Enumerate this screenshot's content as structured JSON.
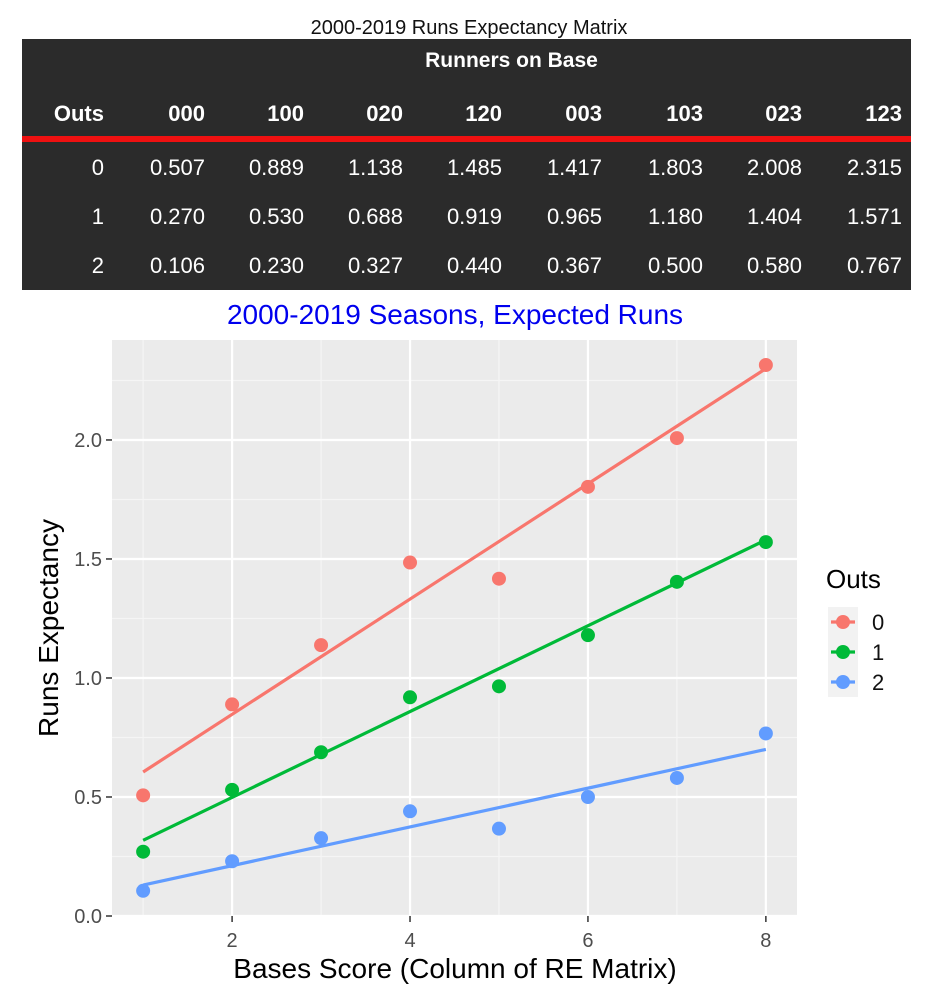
{
  "table": {
    "title": "2000-2019 Runs Expectancy Matrix",
    "spanner": "Runners on Base",
    "columns": [
      "Outs",
      "000",
      "100",
      "020",
      "120",
      "003",
      "103",
      "023",
      "123"
    ],
    "rows": [
      [
        "0",
        "0.507",
        "0.889",
        "1.138",
        "1.485",
        "1.417",
        "1.803",
        "2.008",
        "2.315"
      ],
      [
        "1",
        "0.270",
        "0.530",
        "0.688",
        "0.919",
        "0.965",
        "1.180",
        "1.404",
        "1.571"
      ],
      [
        "2",
        "0.106",
        "0.230",
        "0.327",
        "0.440",
        "0.367",
        "0.500",
        "0.580",
        "0.767"
      ]
    ],
    "colors": {
      "background": "#2b2b2b",
      "text": "#ffffff",
      "rule": "#ee1111"
    }
  },
  "chart_data": {
    "type": "scatter",
    "title": "2000-2019 Seasons, Expected Runs",
    "title_color": "#0000ee",
    "xlabel": "Bases Score (Column of RE Matrix)",
    "ylabel": "Runs Expectancy",
    "xlim": [
      0.65,
      8.35
    ],
    "ylim": [
      0.0,
      2.42
    ],
    "xticks": [
      2,
      4,
      6,
      8
    ],
    "yticks": [
      0.0,
      0.5,
      1.0,
      1.5,
      2.0
    ],
    "ytick_labels": [
      "0.0",
      "0.5",
      "1.0",
      "1.5",
      "2.0"
    ],
    "grid": true,
    "legend": {
      "title": "Outs",
      "placement": "right"
    },
    "x": [
      1,
      2,
      3,
      4,
      5,
      6,
      7,
      8
    ],
    "series": [
      {
        "name": "0",
        "color": "#f8766d",
        "values": [
          0.507,
          0.889,
          1.138,
          1.485,
          1.417,
          1.803,
          2.008,
          2.315
        ],
        "fit": [
          0.605,
          1.57,
          2.3
        ]
      },
      {
        "name": "1",
        "color": "#00ba38",
        "values": [
          0.27,
          0.53,
          0.688,
          0.919,
          0.965,
          1.18,
          1.404,
          1.571
        ],
        "fit": [
          0.318,
          1.03,
          1.58
        ]
      },
      {
        "name": "2",
        "color": "#619cff",
        "values": [
          0.106,
          0.23,
          0.327,
          0.44,
          0.367,
          0.5,
          0.58,
          0.767
        ],
        "fit": [
          0.13,
          0.45,
          0.7
        ]
      }
    ]
  }
}
